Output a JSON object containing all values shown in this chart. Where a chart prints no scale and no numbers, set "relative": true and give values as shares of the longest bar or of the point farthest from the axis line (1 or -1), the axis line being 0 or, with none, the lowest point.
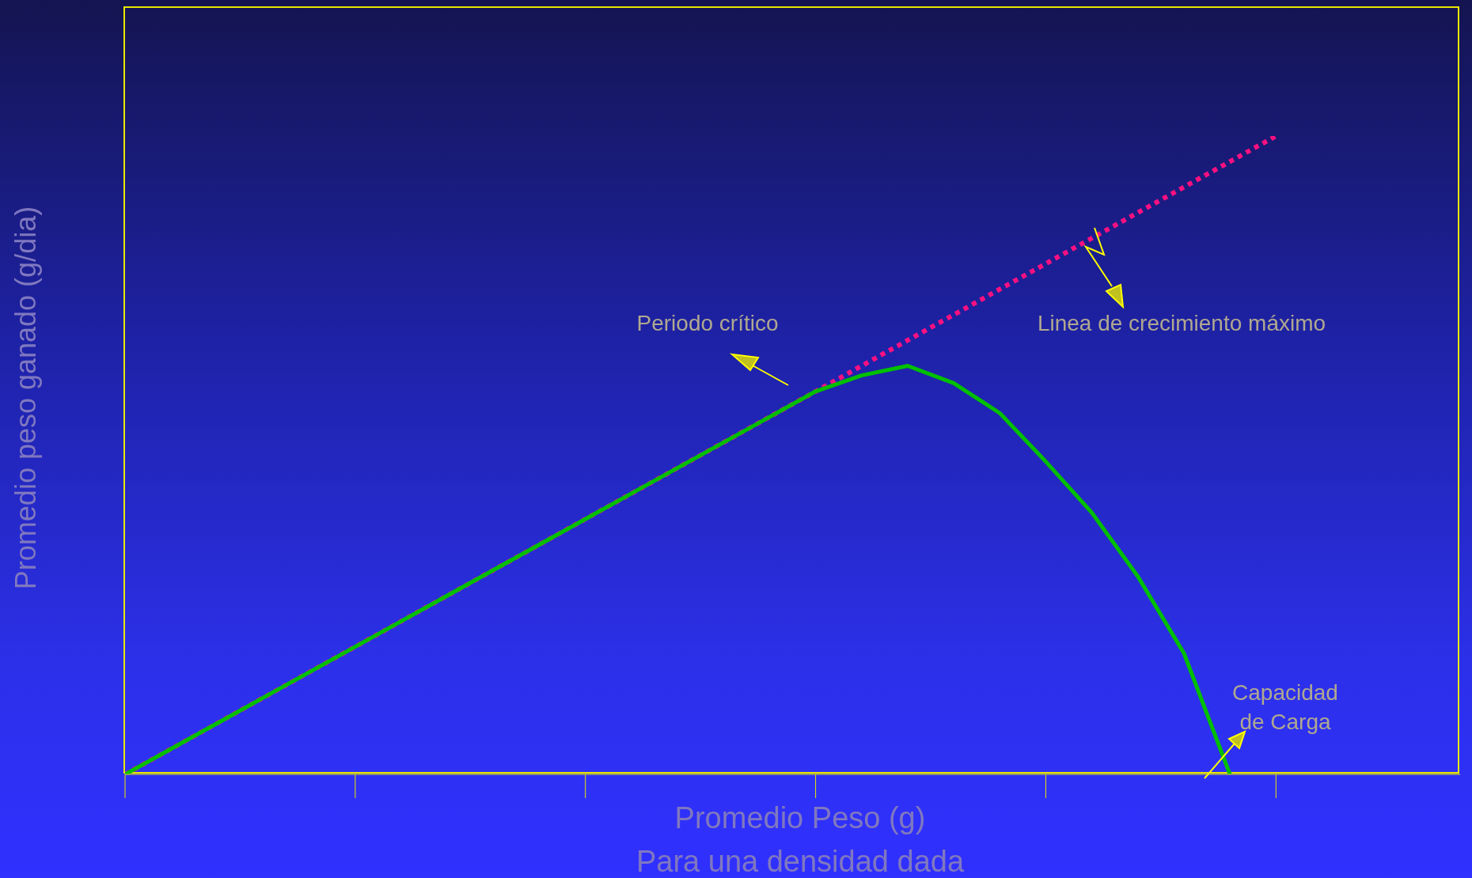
{
  "chart_data": {
    "type": "line",
    "relative": true,
    "xlabel": "Promedio Peso (g)",
    "subtitle": "Para una densidad dada",
    "ylabel": "Promedio peso ganado (g/dia)",
    "categories": [
      null,
      null,
      null,
      null,
      null,
      null,
      null,
      null,
      null,
      null,
      null,
      null,
      null,
      null,
      null,
      null,
      null,
      null,
      null,
      null,
      null,
      null,
      null,
      null,
      null,
      null,
      null,
      null,
      null,
      null
    ],
    "series": [
      {
        "color": "#ff1080",
        "line_style": "dotted",
        "values": [
          0,
          0.04,
          0.08,
          0.12,
          0.16,
          0.2,
          0.24,
          0.28,
          0.32,
          0.36,
          0.4,
          0.44,
          0.48,
          0.52,
          0.56,
          0.6,
          0.64,
          0.68,
          0.72,
          0.76,
          0.8,
          0.84,
          0.88,
          0.92,
          0.96,
          1.0,
          null,
          null,
          null,
          null
        ]
      },
      {
        "color": "#00c000",
        "line_style": "solid",
        "values": [
          0,
          0.04,
          0.08,
          0.12,
          0.16,
          0.2,
          0.24,
          0.28,
          0.32,
          0.36,
          0.4,
          0.44,
          0.48,
          0.52,
          0.56,
          0.6,
          0.625,
          0.64,
          0.613,
          0.566,
          0.49,
          0.41,
          0.31,
          0.19,
          0,
          null,
          null,
          null,
          null,
          null
        ]
      }
    ],
    "annotations": [
      "Periodo crítico",
      "Linea de crecimiento máximo",
      "Capacidad de Carga"
    ]
  }
}
